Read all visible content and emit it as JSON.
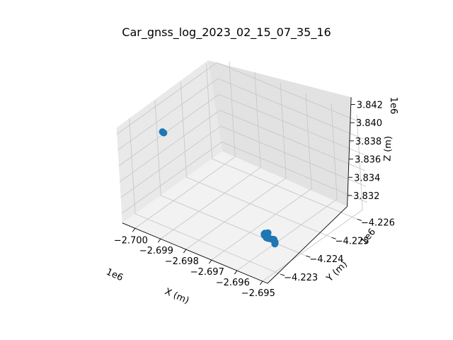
{
  "chart_data": {
    "type": "scatter",
    "title": "Car_gnss_log_2023_02_15_07_35_16",
    "xlabel": "X (m)",
    "ylabel": "Y (m)",
    "zlabel": "Z (m)",
    "x_offset_label": "1e6",
    "y_offset_label": "1e6",
    "z_offset_label": "1e6",
    "x_ticks": [
      "−2.700",
      "−2.699",
      "−2.698",
      "−2.697",
      "−2.696",
      "−2.695"
    ],
    "y_ticks": [
      "−4.223",
      "−4.224",
      "−4.225",
      "−4.226"
    ],
    "z_ticks": [
      "3.842",
      "3.840",
      "3.838",
      "3.836",
      "3.834",
      "3.832"
    ],
    "xlim": [
      -2700500,
      -2694800
    ],
    "ylim": [
      -4226400,
      -4222500
    ],
    "zlim": [
      3830800,
      3842800
    ],
    "grid": true,
    "marker_color": "#1f77b4",
    "series": [
      {
        "x": [
          -2700322,
          -2700287,
          -2700268,
          -2695879,
          -2695921,
          -2695948,
          -2695972,
          -2696008,
          -2696049,
          -2696067,
          -2696091,
          -2696113,
          -2696130,
          -2696144,
          -2696155,
          -2696174,
          -2696180,
          -2696192,
          -2696198,
          -2696204,
          -2696206,
          -2696209,
          -2696196,
          -2696191
        ],
        "y": [
          -4224040,
          -4224040,
          -4224040,
          -4223550,
          -4223530,
          -4223550,
          -4223600,
          -4223650,
          -4223700,
          -4223730,
          -4223820,
          -4223850,
          -4223790,
          -4223870,
          -4223960,
          -4224030,
          -4224090,
          -4224130,
          -4224140,
          -4224150,
          -4224170,
          -4224180,
          -4224170,
          -4224150
        ],
        "z": [
          3838974,
          3838918,
          3838904,
          3832924,
          3832987,
          3833058,
          3833013,
          3832844,
          3832613,
          3832500,
          3832383,
          3832292,
          3831793,
          3831500,
          3831240,
          3830998,
          3830828,
          3830711,
          3830601,
          3830463,
          3830322,
          3830231,
          3830171,
          3830100
        ]
      }
    ]
  }
}
